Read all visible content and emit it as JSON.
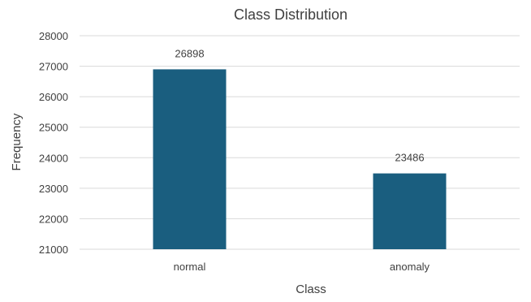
{
  "chart_data": {
    "type": "bar",
    "title": "Class Distribution",
    "xlabel": "Class",
    "ylabel": "Frequency",
    "categories": [
      "normal",
      "anomaly"
    ],
    "values": [
      26898,
      23486
    ],
    "data_labels": [
      "26898",
      "23486"
    ],
    "ylim": [
      21000,
      28000
    ],
    "yticks": [
      21000,
      22000,
      23000,
      24000,
      25000,
      26000,
      27000,
      28000
    ],
    "ytick_labels": [
      "21000",
      "22000",
      "23000",
      "24000",
      "25000",
      "26000",
      "27000",
      "28000"
    ],
    "grid": true,
    "legend": "none",
    "bar_color": "#1a5e7f",
    "grid_color": "#d9d9d9",
    "text_color": "#404040"
  }
}
